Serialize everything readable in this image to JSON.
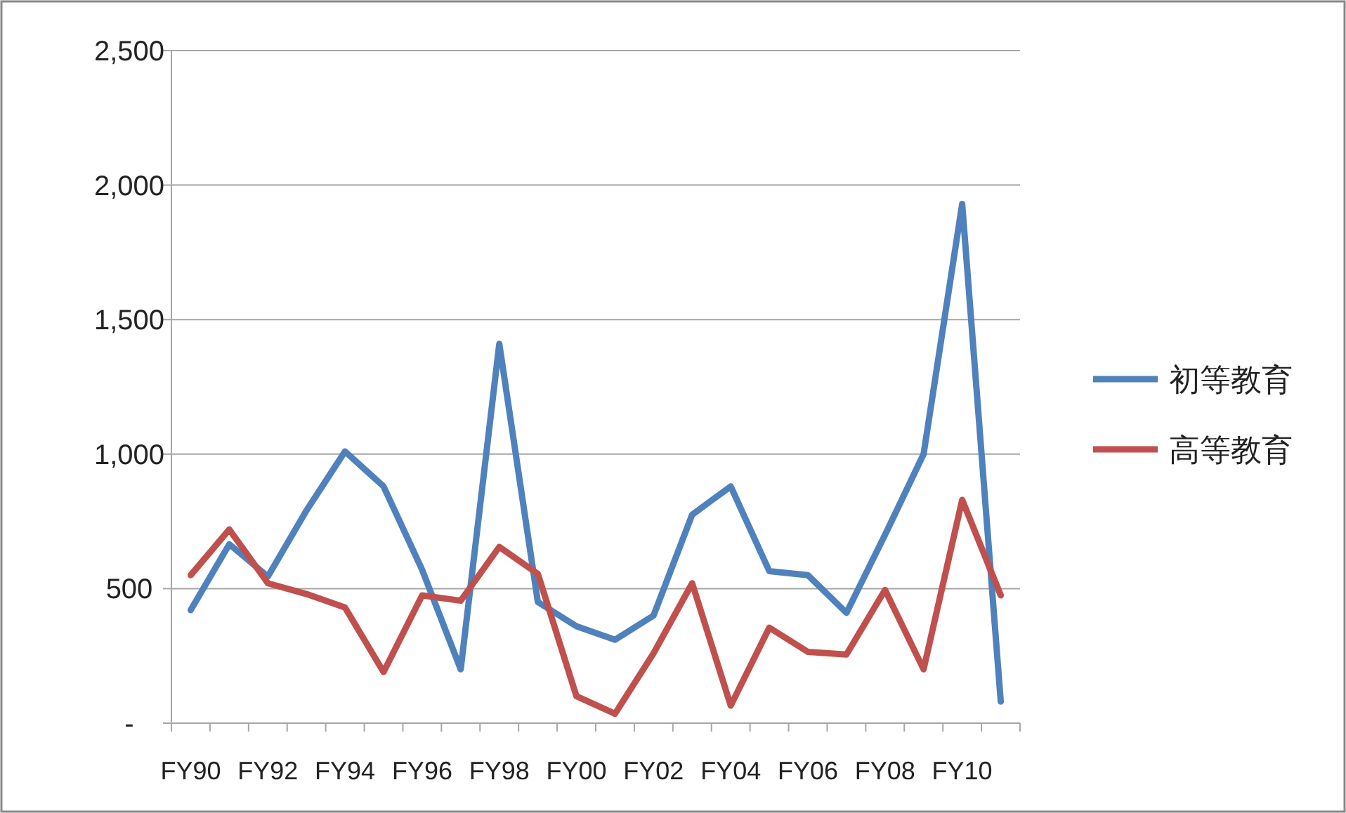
{
  "chart_data": {
    "type": "line",
    "categories": [
      "FY90",
      null,
      "FY92",
      null,
      "FY94",
      null,
      "FY96",
      null,
      "FY98",
      null,
      "FY00",
      null,
      "FY02",
      null,
      "FY04",
      null,
      "FY06",
      null,
      "FY08",
      null,
      "FY10",
      null
    ],
    "series": [
      {
        "name": "初等教育",
        "color": "#4f81bd",
        "values": [
          420,
          665,
          545,
          790,
          1010,
          880,
          570,
          200,
          1410,
          450,
          360,
          310,
          400,
          775,
          880,
          565,
          550,
          410,
          700,
          1000,
          1930,
          80
        ]
      },
      {
        "name": "高等教育",
        "color": "#c0504d",
        "values": [
          550,
          720,
          520,
          480,
          430,
          190,
          475,
          455,
          655,
          555,
          100,
          35,
          260,
          520,
          65,
          355,
          265,
          255,
          495,
          200,
          830,
          475
        ]
      }
    ],
    "ylim": [
      0,
      2500
    ],
    "yticks": [
      {
        "value": 0,
        "label": "-"
      },
      {
        "value": 500,
        "label": "500"
      },
      {
        "value": 1000,
        "label": "1,000"
      },
      {
        "value": 1500,
        "label": "1,500"
      },
      {
        "value": 2000,
        "label": "2,000"
      },
      {
        "value": 2500,
        "label": "2,500"
      }
    ],
    "grid": "y",
    "legend": "right",
    "marker": "none",
    "line_style": "solid"
  }
}
